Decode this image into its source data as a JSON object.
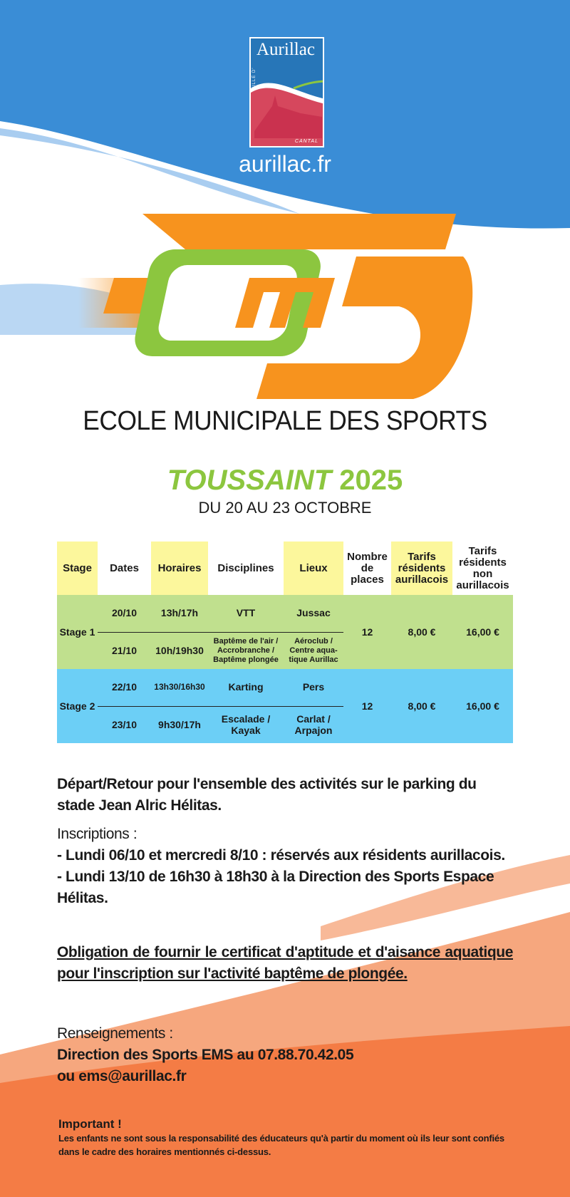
{
  "colors": {
    "blue": "#3a8dd6",
    "orange": "#f47c45",
    "green": "#8cc63f",
    "yellow": "#fcf79c",
    "stage1": "#c0e08e",
    "stage2": "#6ccff6"
  },
  "logo": {
    "name": "Aurillac",
    "ville": "VILLE D'",
    "cantal": "CANTAL"
  },
  "site": "aurillac.fr",
  "ems_logo": "EMS",
  "title": "ECOLE MUNICIPALE DES SPORTS",
  "season": {
    "name": "TOUSSAINT",
    "year": "2025"
  },
  "dates": "DU 20 AU 23 OCTOBRE",
  "table": {
    "headers": [
      "Stage",
      "Dates",
      "Horaires",
      "Disciplines",
      "Lieux",
      "Nombre de places",
      "Tarifs résidents aurillacois",
      "Tarifs résidents non aurillacois"
    ],
    "stages": [
      {
        "name": "Stage 1",
        "places": "12",
        "tarif_res": "8,00 €",
        "tarif_non_res": "16,00 €",
        "rows": [
          {
            "date": "20/10",
            "horaires": "13h/17h",
            "discipline": "VTT",
            "lieu": "Jussac"
          },
          {
            "date": "21/10",
            "horaires": "10h/19h30",
            "discipline": "Baptême de l'air / Accrobranche / Baptême plongée",
            "lieu": "Aéroclub / Centre aqua-tique Aurillac"
          }
        ]
      },
      {
        "name": "Stage 2",
        "places": "12",
        "tarif_res": "8,00 €",
        "tarif_non_res": "16,00 €",
        "rows": [
          {
            "date": "22/10",
            "horaires": "13h30/16h30",
            "discipline": "Karting",
            "lieu": "Pers"
          },
          {
            "date": "23/10",
            "horaires": "9h30/17h",
            "discipline": "Escalade / Kayak",
            "lieu": "Carlat / Arpajon"
          }
        ]
      }
    ]
  },
  "info": {
    "depart": "Départ/Retour pour l'ensemble des activités sur le parking du stade Jean Alric Hélitas.",
    "inscriptions_title": "Inscriptions :",
    "inscription_1": "- Lundi 06/10 et mercredi 8/10 : réservés aux résidents aurillacois.",
    "inscription_2": "- Lundi 13/10 de 16h30 à 18h30 à la Direction des Sports Espace Hélitas.",
    "obligation": "Obligation de fournir le certificat d'aptitude et d'aisance aquatique pour l'inscription sur l'activité baptême de plongée.",
    "renseignements_title": "Renseignements :",
    "renseignements_1": "Direction des Sports EMS au 07.88.70.42.05",
    "renseignements_2": "ou ems@aurillac.fr"
  },
  "important": {
    "title": "Important !",
    "text": "Les enfants ne sont sous la responsabilité des éducateurs qu'à partir du moment où ils leur sont confiés dans le cadre des horaires mentionnés ci-dessus."
  }
}
